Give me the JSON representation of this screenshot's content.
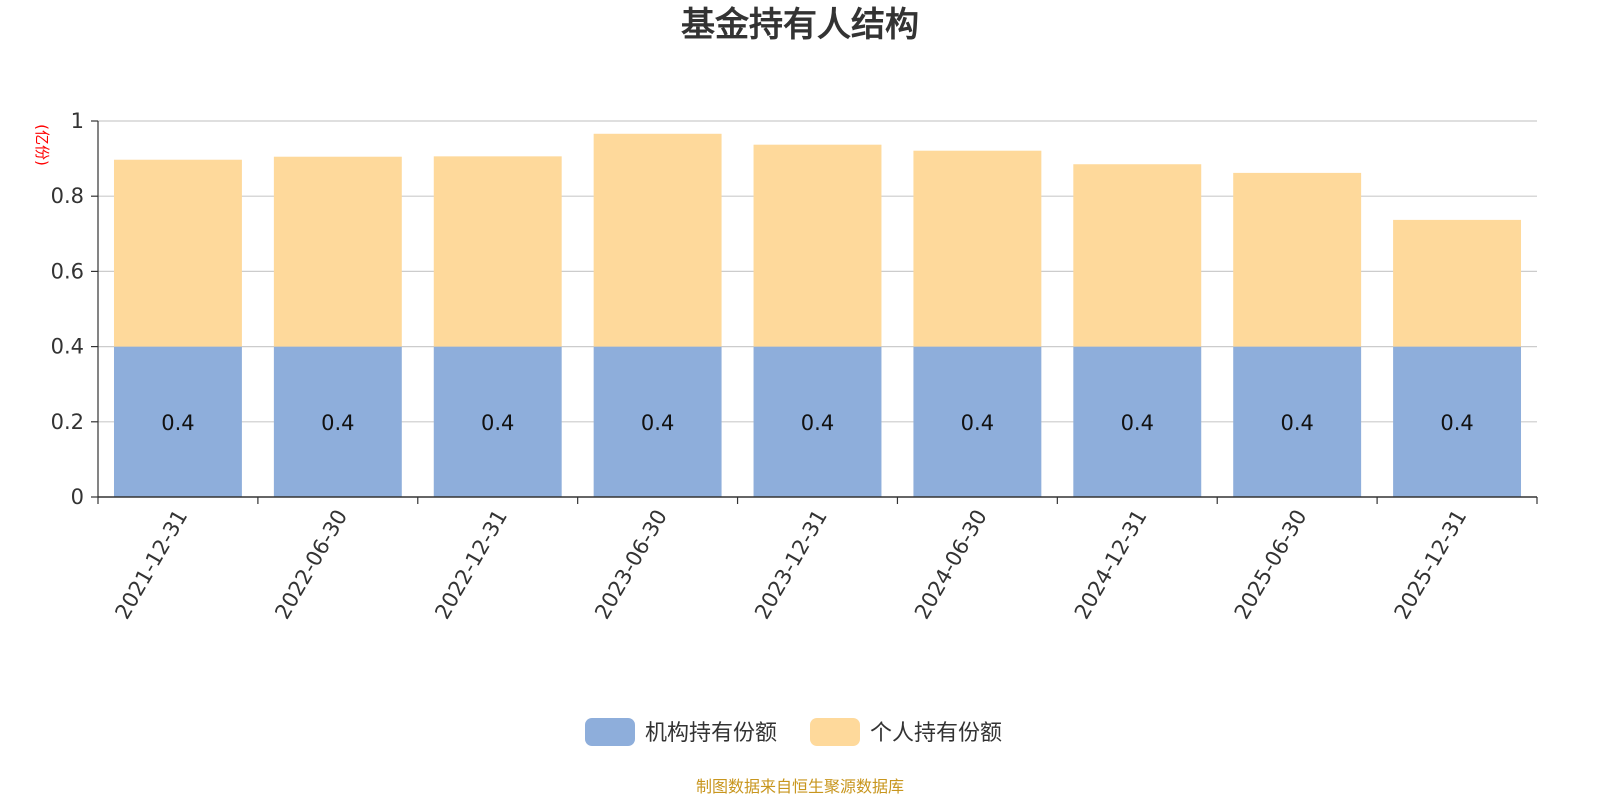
{
  "chart_data": {
    "type": "bar",
    "stacked": true,
    "title": "基金持有人结构",
    "unit_label": "(亿份)",
    "categories": [
      "2021-12-31",
      "2022-06-30",
      "2022-12-31",
      "2023-06-30",
      "2023-12-31",
      "2024-06-30",
      "2024-12-31",
      "2025-06-30",
      "2025-12-31"
    ],
    "series": [
      {
        "name": "机构持有份额",
        "color": "#8eaedb",
        "values": [
          0.4,
          0.4,
          0.4,
          0.4,
          0.4,
          0.4,
          0.4,
          0.4,
          0.4
        ],
        "data_labels": [
          "0.4",
          "0.4",
          "0.4",
          "0.4",
          "0.4",
          "0.4",
          "0.4",
          "0.4",
          "0.4"
        ]
      },
      {
        "name": "个人持有份额",
        "color": "#fed99b",
        "values": [
          0.497,
          0.505,
          0.506,
          0.566,
          0.537,
          0.521,
          0.485,
          0.462,
          0.337
        ]
      }
    ],
    "y_ticks": [
      "0",
      "0.2",
      "0.4",
      "0.6",
      "0.8",
      "1"
    ],
    "ylim": [
      0,
      1
    ],
    "grid": true,
    "legend_position": "bottom"
  },
  "source_note": "制图数据来自恒生聚源数据库",
  "colors": {
    "unit_label": "#ff0000",
    "source_note": "#c8961e",
    "grid": "#cccccc",
    "axis": "#333333"
  }
}
